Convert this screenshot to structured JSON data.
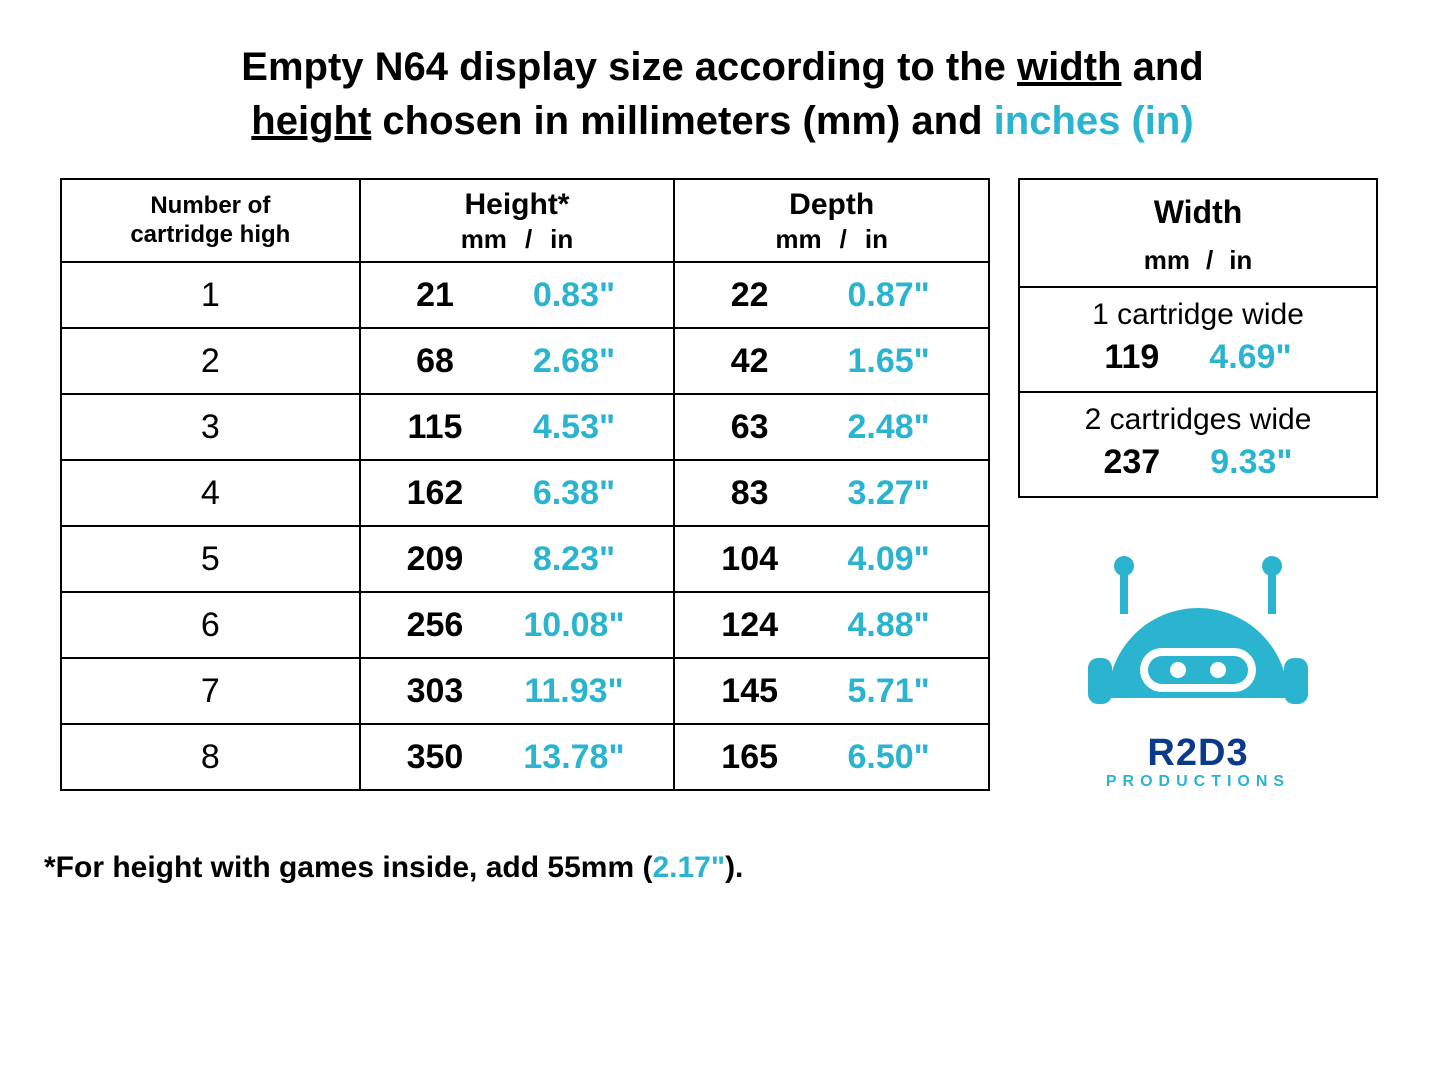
{
  "colors": {
    "accent": "#2bb4cf",
    "text": "#000000",
    "brand_blue": "#0b3a8a",
    "background": "#ffffff",
    "border": "#000000"
  },
  "typography": {
    "title_fontsize": 40,
    "header_fontsize": 30,
    "cell_fontsize": 34,
    "footnote_fontsize": 30
  },
  "title": {
    "part1": "Empty N64 display size according to the ",
    "u1": "width",
    "part2": " and ",
    "u2": "height",
    "part3": " chosen in millimeters (mm) and ",
    "accent": "inches (in)"
  },
  "main_table": {
    "type": "table",
    "columns": {
      "num": {
        "line1": "Number of",
        "line2": "cartridge high"
      },
      "height": {
        "title": "Height*",
        "unit_mm": "mm",
        "sep": "/",
        "unit_in": "in"
      },
      "depth": {
        "title": "Depth",
        "unit_mm": "mm",
        "sep": "/",
        "unit_in": "in"
      }
    },
    "rows": [
      {
        "n": "1",
        "h_mm": "21",
        "h_in": "0.83\"",
        "d_mm": "22",
        "d_in": "0.87\""
      },
      {
        "n": "2",
        "h_mm": "68",
        "h_in": "2.68\"",
        "d_mm": "42",
        "d_in": "1.65\""
      },
      {
        "n": "3",
        "h_mm": "115",
        "h_in": "4.53\"",
        "d_mm": "63",
        "d_in": "2.48\""
      },
      {
        "n": "4",
        "h_mm": "162",
        "h_in": "6.38\"",
        "d_mm": "83",
        "d_in": "3.27\""
      },
      {
        "n": "5",
        "h_mm": "209",
        "h_in": "8.23\"",
        "d_mm": "104",
        "d_in": "4.09\""
      },
      {
        "n": "6",
        "h_mm": "256",
        "h_in": "10.08\"",
        "d_mm": "124",
        "d_in": "4.88\""
      },
      {
        "n": "7",
        "h_mm": "303",
        "h_in": "11.93\"",
        "d_mm": "145",
        "d_in": "5.71\""
      },
      {
        "n": "8",
        "h_mm": "350",
        "h_in": "13.78\"",
        "d_mm": "165",
        "d_in": "6.50\""
      }
    ]
  },
  "width_table": {
    "type": "table",
    "title": "Width",
    "unit_mm": "mm",
    "sep": "/",
    "unit_in": "in",
    "rows": [
      {
        "label": "1 cartridge wide",
        "mm": "119",
        "in": "4.69\""
      },
      {
        "label": "2 cartridges wide",
        "mm": "237",
        "in": "9.33\""
      }
    ]
  },
  "logo": {
    "brand": "R2D3",
    "sub": "PRODUCTIONS",
    "robot_color": "#2bb4cf"
  },
  "footnote": {
    "lead": "*For height with games inside, add 55mm (",
    "accent": "2.17\"",
    "tail": ")."
  }
}
